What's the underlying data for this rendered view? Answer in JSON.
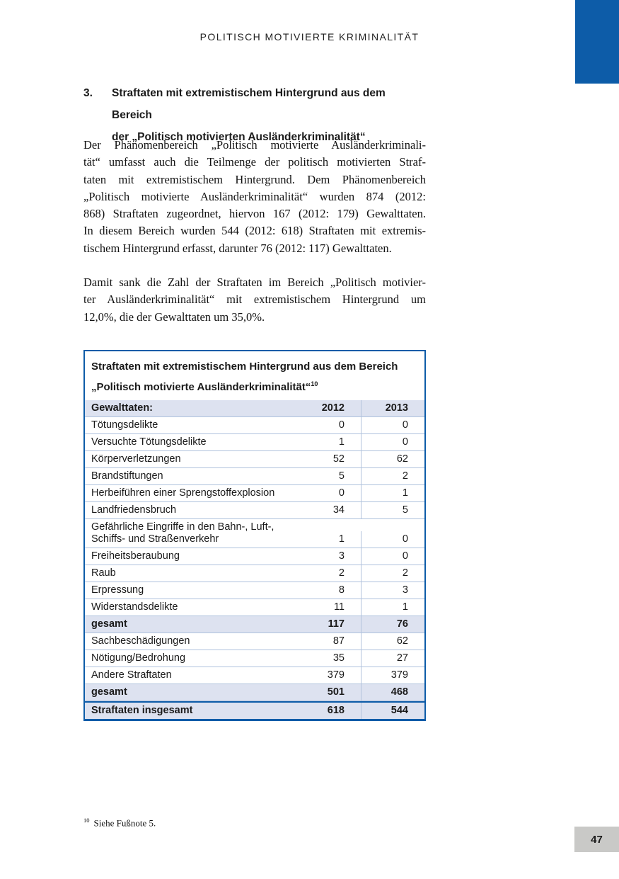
{
  "page": {
    "running_header": "POLITISCH MOTIVIERTE KRIMINALITÄT",
    "page_number": "47"
  },
  "colors": {
    "accent_blue": "#0d5ca8",
    "table_border": "#0d5ca8",
    "row_highlight": "#dde2f0",
    "row_separator": "#afc2dd",
    "column_divider": "#b3c3dc",
    "page_number_bg": "#c9c9c7",
    "text": "#1a1a1a"
  },
  "section": {
    "number": "3.",
    "heading_lines": [
      "Straftaten mit extremistischem Hintergrund aus dem Bereich",
      "der „Politisch motivierten Ausländerkriminalität“"
    ]
  },
  "paragraphs": [
    {
      "lines": [
        "Der Phänomenbereich „Politisch motivierte Ausländerkriminali-",
        "tät“ umfasst auch die Teilmenge der politisch motivierten Straf-",
        "taten mit extremistischem Hintergrund. Dem Phänomenbereich",
        "„Politisch motivierte Ausländerkriminalität“ wurden 874 (2012:",
        "868) Straftaten zugeordnet, hiervon 167 (2012: 179) Gewalttaten.",
        "In diesem Bereich wurden 544 (2012: 618) Straftaten mit extremis-",
        "tischem Hintergrund erfasst, darunter 76 (2012: 117) Gewalttaten."
      ]
    },
    {
      "lines": [
        "Damit sank die Zahl der Straftaten im Bereich „Politisch motivier-",
        "ter Ausländerkriminalität“ mit extremistischem Hintergrund um",
        "12,0%, die der Gewalttaten um 35,0%."
      ]
    }
  ],
  "table": {
    "title_lines": [
      "Straftaten mit extremistischem Hintergrund aus dem Bereich",
      "„Politisch motivierte Ausländerkriminalität“"
    ],
    "title_footnote_ref": "10",
    "columns": {
      "label": "Gewalttaten:",
      "col2012": "2012",
      "col2013": "2013"
    },
    "rows": [
      {
        "label": "Tötungsdelikte",
        "y2012": "0",
        "y2013": "0",
        "style": "normal"
      },
      {
        "label": "Versuchte Tötungsdelikte",
        "y2012": "1",
        "y2013": "0",
        "style": "normal"
      },
      {
        "label": "Körperverletzungen",
        "y2012": "52",
        "y2013": "62",
        "style": "normal"
      },
      {
        "label": "Brandstiftungen",
        "y2012": "5",
        "y2013": "2",
        "style": "normal"
      },
      {
        "label": "Herbeiführen einer Sprengstoffexplosion",
        "y2012": "0",
        "y2013": "1",
        "style": "normal"
      },
      {
        "label": "Landfriedensbruch",
        "y2012": "34",
        "y2013": "5",
        "style": "normal"
      },
      {
        "label": "Gefährliche Eingriffe in den Bahn-, Luft-,",
        "label_line2": "Schiffs- und Straßenverkehr",
        "y2012": "1",
        "y2013": "0",
        "style": "normal"
      },
      {
        "label": "Freiheitsberaubung",
        "y2012": "3",
        "y2013": "0",
        "style": "normal"
      },
      {
        "label": "Raub",
        "y2012": "2",
        "y2013": "2",
        "style": "normal"
      },
      {
        "label": "Erpressung",
        "y2012": "8",
        "y2013": "3",
        "style": "normal"
      },
      {
        "label": "Widerstandsdelikte",
        "y2012": "11",
        "y2013": "1",
        "style": "normal"
      },
      {
        "label": "gesamt",
        "y2012": "117",
        "y2013": "76",
        "style": "subtotal"
      },
      {
        "label": "Sachbeschädigungen",
        "y2012": "87",
        "y2013": "62",
        "style": "normal"
      },
      {
        "label": "Nötigung/Bedrohung",
        "y2012": "35",
        "y2013": "27",
        "style": "normal"
      },
      {
        "label": "Andere Straftaten",
        "y2012": "379",
        "y2013": "379",
        "style": "normal"
      },
      {
        "label": "gesamt",
        "y2012": "501",
        "y2013": "468",
        "style": "subtotal"
      },
      {
        "label": "Straftaten insgesamt",
        "y2012": "618",
        "y2013": "544",
        "style": "total"
      }
    ]
  },
  "footnote": {
    "marker": "10",
    "text": "Siehe Fußnote 5."
  }
}
